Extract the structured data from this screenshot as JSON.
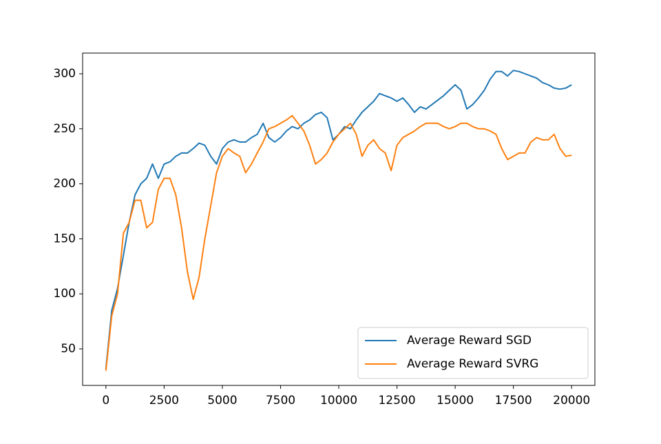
{
  "chart_data": {
    "type": "line",
    "x": [
      0,
      250,
      500,
      750,
      1000,
      1250,
      1500,
      1750,
      2000,
      2250,
      2500,
      2750,
      3000,
      3250,
      3500,
      3750,
      4000,
      4250,
      4500,
      4750,
      5000,
      5250,
      5500,
      5750,
      6000,
      6250,
      6500,
      6750,
      7000,
      7250,
      7500,
      7750,
      8000,
      8250,
      8500,
      8750,
      9000,
      9250,
      9500,
      9750,
      10000,
      10250,
      10500,
      10750,
      11000,
      11250,
      11500,
      11750,
      12000,
      12250,
      12500,
      12750,
      13000,
      13250,
      13500,
      13750,
      14000,
      14250,
      14500,
      14750,
      15000,
      15250,
      15500,
      15750,
      16000,
      16250,
      16500,
      16750,
      17000,
      17250,
      17500,
      17750,
      18000,
      18250,
      18500,
      18750,
      19000,
      19250,
      19500,
      19750,
      20000
    ],
    "series": [
      {
        "name": "Average Reward SGD",
        "color": "#1f77b4",
        "values": [
          32,
          85,
          105,
          135,
          165,
          190,
          200,
          205,
          218,
          205,
          218,
          220,
          225,
          228,
          228,
          232,
          237,
          235,
          225,
          218,
          232,
          238,
          240,
          238,
          238,
          242,
          245,
          255,
          242,
          238,
          242,
          248,
          252,
          250,
          255,
          258,
          263,
          265,
          260,
          240,
          245,
          252,
          250,
          258,
          265,
          270,
          275,
          282,
          280,
          278,
          275,
          278,
          272,
          265,
          270,
          268,
          272,
          276,
          280,
          285,
          290,
          285,
          268,
          272,
          278,
          285,
          295,
          302,
          302,
          298,
          303,
          302,
          300,
          298,
          296,
          292,
          290,
          287,
          286,
          287,
          290
        ]
      },
      {
        "name": "Average Reward SVRG",
        "color": "#ff7f0e",
        "values": [
          30,
          80,
          100,
          155,
          165,
          185,
          185,
          160,
          165,
          195,
          205,
          205,
          190,
          160,
          120,
          95,
          115,
          150,
          180,
          210,
          225,
          232,
          228,
          225,
          210,
          218,
          228,
          238,
          250,
          252,
          255,
          258,
          262,
          255,
          248,
          235,
          218,
          222,
          228,
          238,
          245,
          250,
          255,
          245,
          225,
          235,
          240,
          232,
          228,
          212,
          235,
          242,
          245,
          248,
          252,
          255,
          255,
          255,
          252,
          250,
          252,
          255,
          255,
          252,
          250,
          250,
          248,
          245,
          232,
          222,
          225,
          228,
          228,
          238,
          242,
          240,
          240,
          245,
          232,
          225,
          226
        ]
      }
    ],
    "xlim": [
      -1000,
      21000
    ],
    "xticks": [
      0,
      2500,
      5000,
      7500,
      10000,
      12500,
      15000,
      17500,
      20000
    ],
    "ylim": [
      16.8,
      318.8
    ],
    "yticks": [
      50,
      100,
      150,
      200,
      250,
      300
    ],
    "legend": "lower right"
  }
}
